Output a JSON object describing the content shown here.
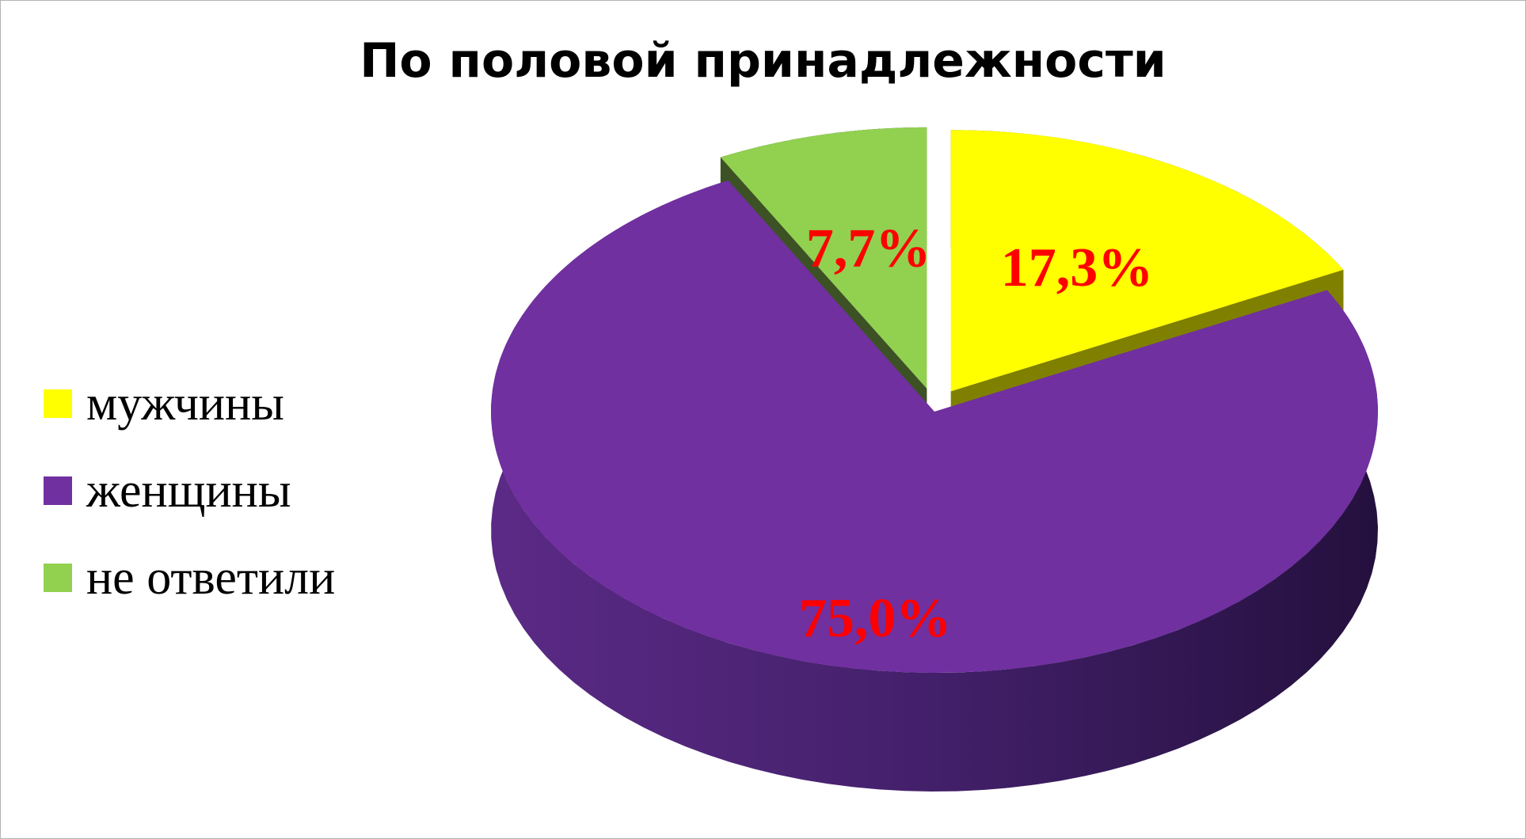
{
  "chart_data": {
    "type": "pie",
    "title": "По половой принадлежности",
    "categories": [
      "мужчины",
      "женщины",
      "не ответили"
    ],
    "values": [
      17.3,
      75.0,
      7.7
    ],
    "data_labels": [
      "17,3%",
      "75,0%",
      "7,7%"
    ],
    "colors": [
      "#ffff00",
      "#7030a0",
      "#92d050"
    ],
    "side_colors": [
      "#808000",
      "#5a2585",
      "#3c5224"
    ],
    "exploded": [
      true,
      false,
      true
    ],
    "legend_position": "left",
    "style": "3d-exploded-pie"
  }
}
